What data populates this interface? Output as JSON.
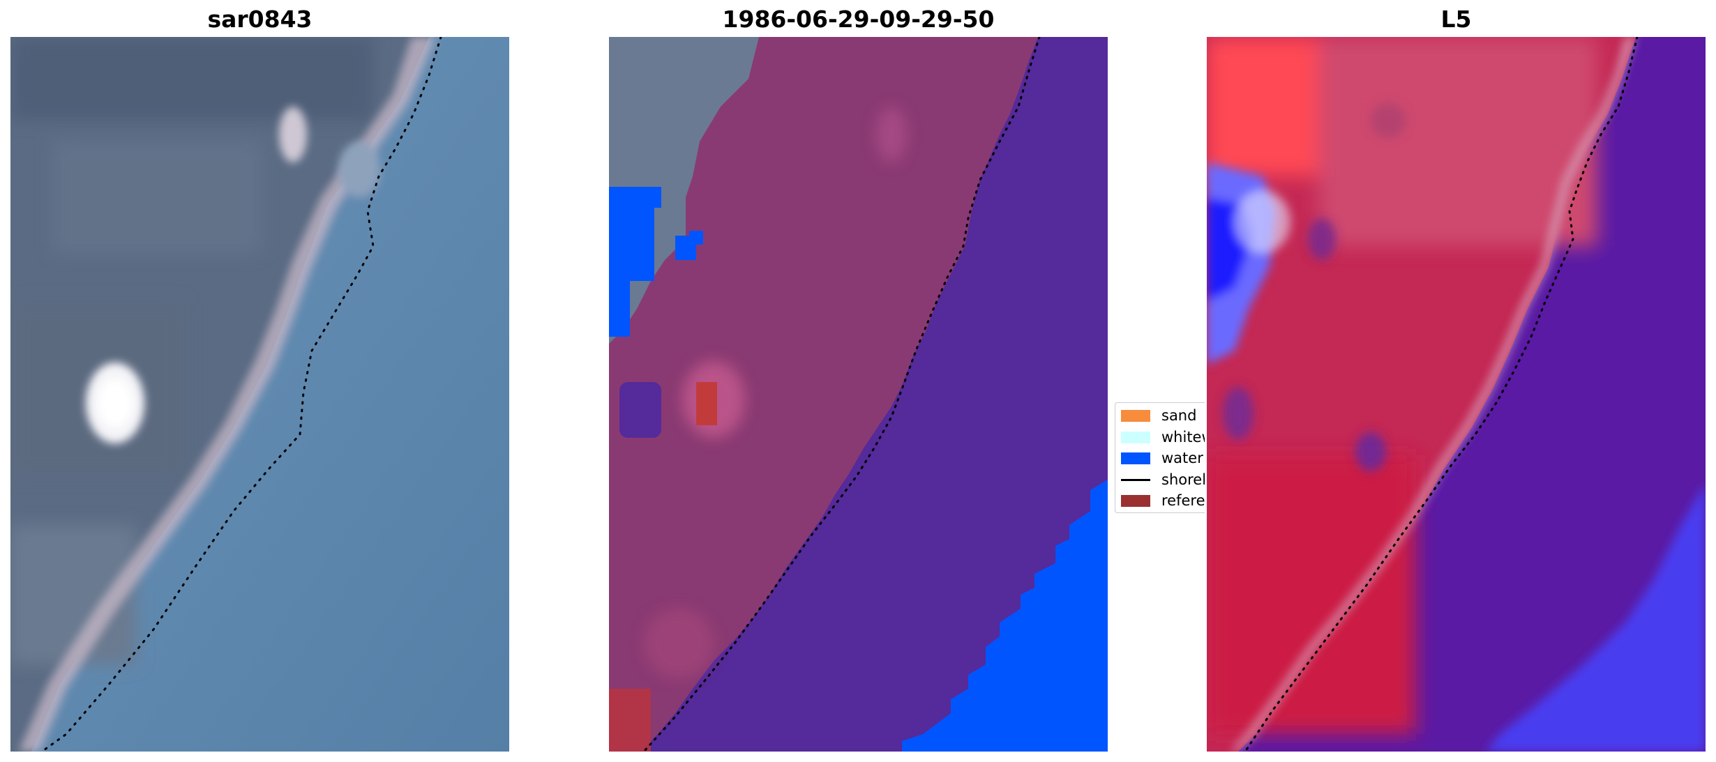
{
  "panels": [
    {
      "title": "sar0843"
    },
    {
      "title": "1986-06-29-09-29-50"
    },
    {
      "title": "L5"
    }
  ],
  "legend": {
    "items": [
      {
        "label": "sand",
        "color": "#f68c3c"
      },
      {
        "label": "whitewater",
        "color": "#ccffff"
      },
      {
        "label": "water",
        "color": "#0055ff"
      },
      {
        "label": "shoreline",
        "color": "#000000"
      },
      {
        "label": "reference shoreline",
        "color": "#9a3030"
      }
    ]
  },
  "colors": {
    "rgb_land": "#586a82",
    "rgb_water": "#5d86ad",
    "class_land": "#8a3a72",
    "class_land_unclassified": "#6a7a92",
    "class_water": "#552a9a",
    "class_water_bright": "#0055ff",
    "index_land": "#c42854",
    "index_water": "#5a1aa4",
    "index_positive": "#ff4a4a",
    "index_negative": "#1a2aff"
  }
}
